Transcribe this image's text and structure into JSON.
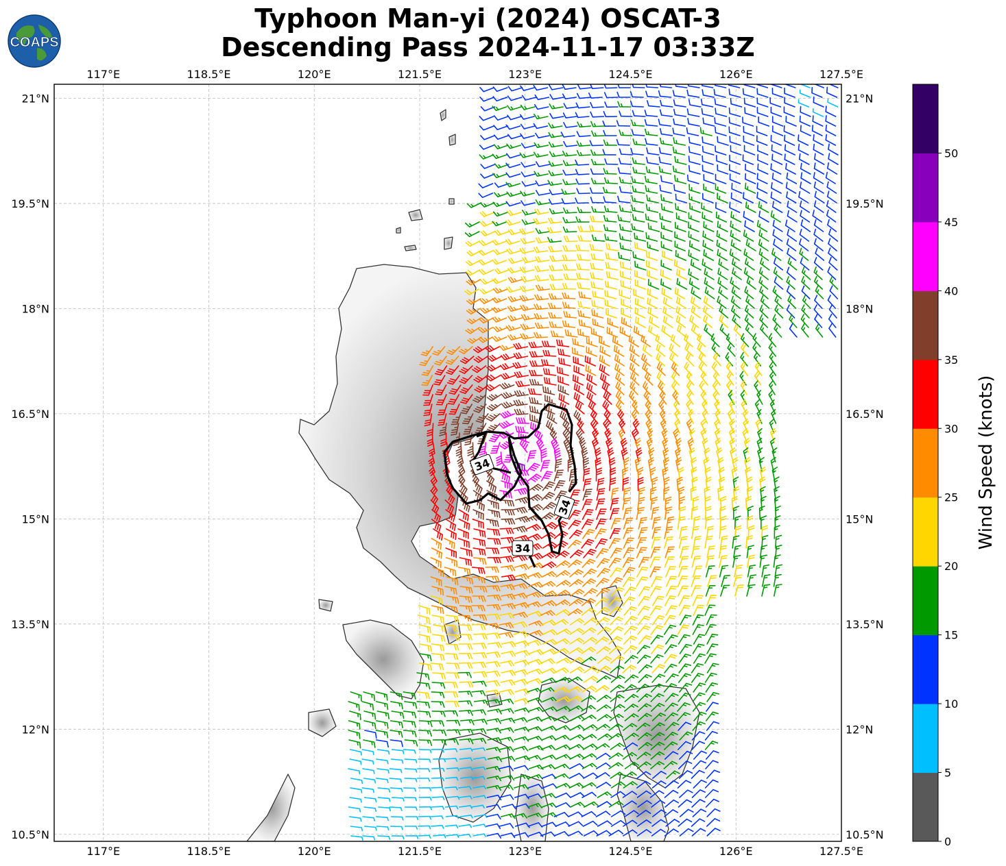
{
  "title_line1": "Typhoon Man-yi (2024) OSCAT-3",
  "title_line2": "Descending Pass 2024-11-17 03:33Z",
  "logo_text": "COAPS",
  "lon_ticks": [
    "117°E",
    "118.5°E",
    "120°E",
    "121.5°E",
    "123°E",
    "124.5°E",
    "126°E",
    "127.5°E"
  ],
  "lat_ticks": [
    "21°N",
    "19.5°N",
    "18°N",
    "16.5°N",
    "15°N",
    "13.5°N",
    "12°N",
    "10.5°N"
  ],
  "lon_values": [
    117,
    118.5,
    120,
    121.5,
    123,
    124.5,
    126,
    127.5
  ],
  "lat_values": [
    21,
    19.5,
    18,
    16.5,
    15,
    13.5,
    12,
    10.5
  ],
  "extent": {
    "lon_min": 116.3,
    "lon_max": 127.5,
    "lat_min": 10.4,
    "lat_max": 21.2
  },
  "colorbar": {
    "label": "Wind Speed (knots)",
    "ticks": [
      "0",
      "5",
      "10",
      "15",
      "20",
      "25",
      "30",
      "35",
      "40",
      "45",
      "50"
    ],
    "colors": [
      "#595959",
      "#00bfff",
      "#0033ff",
      "#009900",
      "#ffd700",
      "#ff8c00",
      "#ff0000",
      "#7f3f2a",
      "#ff00ff",
      "#8800bb",
      "#330066"
    ]
  },
  "contour_labels": [
    "34",
    "34",
    "34"
  ],
  "storm_center": {
    "lon": 122.9,
    "lat": 15.9
  }
}
